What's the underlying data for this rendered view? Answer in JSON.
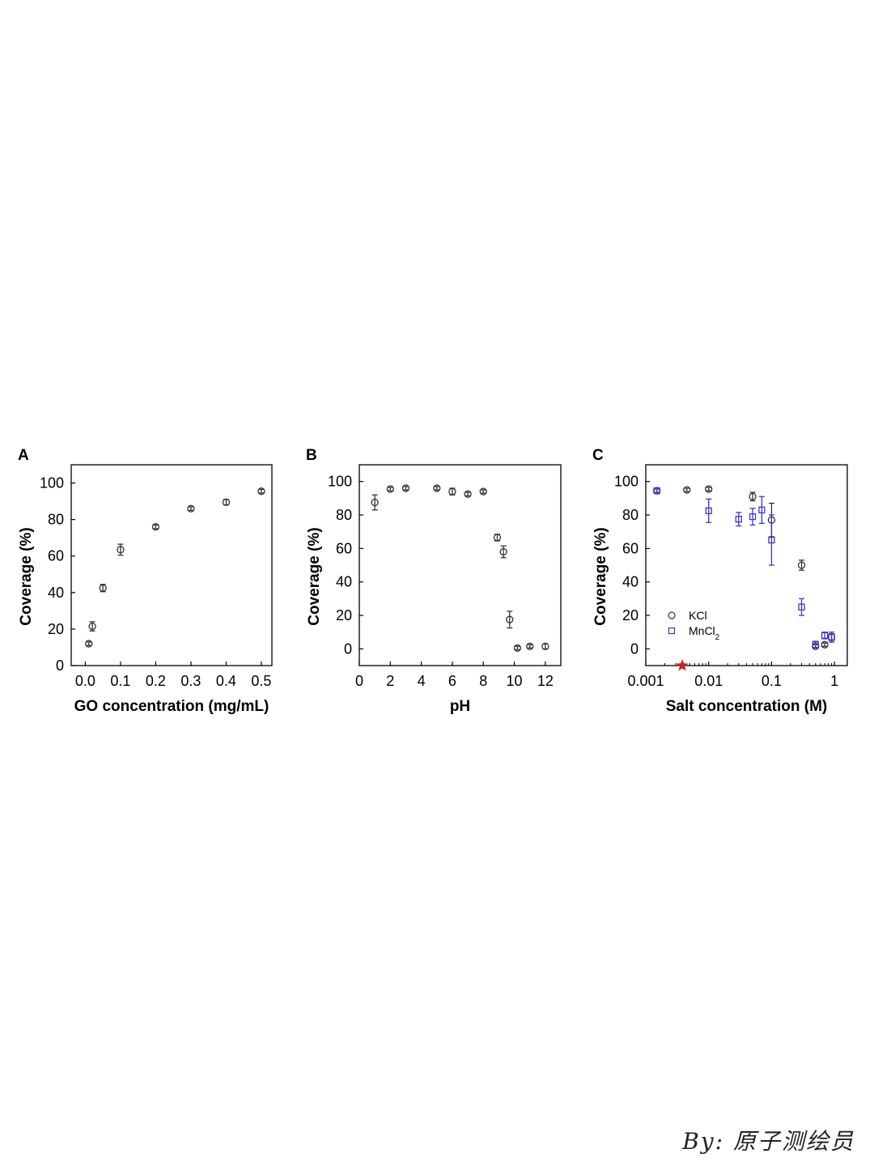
{
  "chart_data": [
    {
      "type": "scatter",
      "panel": "A",
      "xlabel": "GO concentration (mg/mL)",
      "ylabel": "Coverage (%)",
      "xlim": [
        -0.04,
        0.53
      ],
      "ylim": [
        0,
        110
      ],
      "x_ticks": [
        0.0,
        0.1,
        0.2,
        0.3,
        0.4,
        0.5
      ],
      "x_tick_labels": [
        "0.0",
        "0.1",
        "0.2",
        "0.3",
        "0.4",
        "0.5"
      ],
      "y_ticks": [
        0,
        20,
        40,
        60,
        80,
        100
      ],
      "y_tick_labels": [
        "0",
        "20",
        "40",
        "60",
        "80",
        "100"
      ],
      "x_scale": "linear",
      "grid": false,
      "series": [
        {
          "marker": "circle",
          "color": "#333333",
          "points": [
            {
              "x": 0.01,
              "y": 12,
              "err": 1
            },
            {
              "x": 0.02,
              "y": 21.5,
              "err": 2.5
            },
            {
              "x": 0.05,
              "y": 42.5,
              "err": 2
            },
            {
              "x": 0.1,
              "y": 63.5,
              "err": 3
            },
            {
              "x": 0.2,
              "y": 76,
              "err": 1
            },
            {
              "x": 0.3,
              "y": 86,
              "err": 1
            },
            {
              "x": 0.4,
              "y": 89.5,
              "err": 1.5
            },
            {
              "x": 0.5,
              "y": 95.5,
              "err": 1
            }
          ]
        }
      ]
    },
    {
      "type": "scatter",
      "panel": "B",
      "xlabel": "pH",
      "ylabel": "Coverage (%)",
      "xlim": [
        0,
        13
      ],
      "ylim": [
        -10,
        110
      ],
      "x_ticks": [
        0,
        2,
        4,
        6,
        8,
        10,
        12
      ],
      "x_tick_labels": [
        "0",
        "2",
        "4",
        "6",
        "8",
        "10",
        "12"
      ],
      "y_ticks": [
        0,
        20,
        40,
        60,
        80,
        100
      ],
      "y_tick_labels": [
        "0",
        "20",
        "40",
        "60",
        "80",
        "100"
      ],
      "x_scale": "linear",
      "grid": false,
      "series": [
        {
          "marker": "circle",
          "color": "#333333",
          "points": [
            {
              "x": 1,
              "y": 87.5,
              "err": 4.5
            },
            {
              "x": 2,
              "y": 95.5,
              "err": 1
            },
            {
              "x": 3,
              "y": 96,
              "err": 1
            },
            {
              "x": 5,
              "y": 96,
              "err": 1
            },
            {
              "x": 6,
              "y": 94,
              "err": 2
            },
            {
              "x": 7,
              "y": 92.5,
              "err": 1
            },
            {
              "x": 8,
              "y": 94,
              "err": 1
            },
            {
              "x": 8.9,
              "y": 66.5,
              "err": 2
            },
            {
              "x": 9.3,
              "y": 58,
              "err": 3.5
            },
            {
              "x": 9.7,
              "y": 17.5,
              "err": 5
            },
            {
              "x": 10.2,
              "y": 0.5,
              "err": 1
            },
            {
              "x": 11,
              "y": 1.5,
              "err": 1
            },
            {
              "x": 12,
              "y": 1.5,
              "err": 1.5
            }
          ]
        }
      ]
    },
    {
      "type": "scatter",
      "panel": "C",
      "xlabel": "Salt concentration (M)",
      "ylabel": "Coverage (%)",
      "xlim": [
        0.001,
        1.6
      ],
      "ylim": [
        -10,
        110
      ],
      "x_scale": "log",
      "x_ticks": [
        0.001,
        0.01,
        0.1,
        1
      ],
      "x_tick_labels": [
        "0.001",
        "0.01",
        "0.1",
        "1"
      ],
      "y_ticks": [
        0,
        20,
        40,
        60,
        80,
        100
      ],
      "y_tick_labels": [
        "0",
        "20",
        "40",
        "60",
        "80",
        "100"
      ],
      "grid": false,
      "legend_position": "bottom-left",
      "star_marker": {
        "x": 0.0038,
        "y": -10,
        "color": "#d32020"
      },
      "series": [
        {
          "name": "KCl",
          "marker": "circle",
          "color": "#333333",
          "points": [
            {
              "x": 0.0015,
              "y": 94.5,
              "err": 1
            },
            {
              "x": 0.0045,
              "y": 95,
              "err": 1
            },
            {
              "x": 0.01,
              "y": 95.5,
              "err": 1
            },
            {
              "x": 0.05,
              "y": 91,
              "err": 2.5
            },
            {
              "x": 0.1,
              "y": 77,
              "err": 10
            },
            {
              "x": 0.3,
              "y": 50,
              "err": 3
            },
            {
              "x": 0.5,
              "y": 1.5,
              "err": 1
            },
            {
              "x": 0.7,
              "y": 2.5,
              "err": 1
            },
            {
              "x": 0.9,
              "y": 7,
              "err": 2
            }
          ]
        },
        {
          "name": "MnCl",
          "name_subscript": "2",
          "marker": "square",
          "color": "#3838c8",
          "points": [
            {
              "x": 0.0015,
              "y": 94.5,
              "err": 1
            },
            {
              "x": 0.01,
              "y": 82.5,
              "err": 7
            },
            {
              "x": 0.03,
              "y": 77.5,
              "err": 4
            },
            {
              "x": 0.05,
              "y": 79,
              "err": 5
            },
            {
              "x": 0.07,
              "y": 83,
              "err": 8
            },
            {
              "x": 0.1,
              "y": 65,
              "err": 15
            },
            {
              "x": 0.3,
              "y": 25,
              "err": 5
            },
            {
              "x": 0.5,
              "y": 2.5,
              "err": 2
            },
            {
              "x": 0.7,
              "y": 8,
              "err": 2
            },
            {
              "x": 0.9,
              "y": 7,
              "err": 3
            }
          ]
        }
      ]
    }
  ],
  "watermark": "By: 原子测绘员"
}
